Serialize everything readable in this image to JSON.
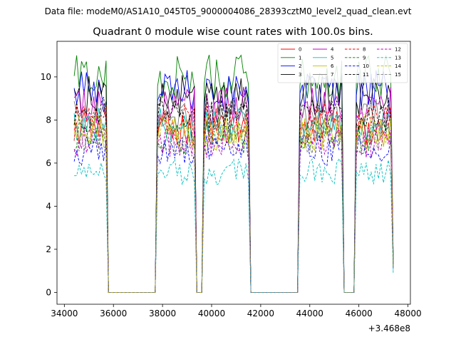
{
  "figure": {
    "suptitle": "Data file: modeM0/AS1A10_045T05_9000004086_28393cztM0_level2_quad_clean.evt"
  },
  "chart_data": {
    "type": "line",
    "title": "Quadrant 0 module wise count rates with 100.0s bins.",
    "xlabel": "",
    "ylabel": "",
    "x_offset_label": "+3.468e8",
    "xlim": [
      33700,
      48100
    ],
    "ylim": [
      -0.55,
      11.65
    ],
    "xticks": [
      34000,
      36000,
      38000,
      40000,
      42000,
      44000,
      46000,
      48000
    ],
    "xtick_labels": [
      "34000",
      "36000",
      "38000",
      "40000",
      "42000",
      "44000",
      "46000",
      "48000"
    ],
    "yticks": [
      0,
      2,
      4,
      6,
      8,
      10
    ],
    "ytick_labels": [
      "0",
      "2",
      "4",
      "6",
      "8",
      "10"
    ],
    "legend_position": "top-right",
    "segments": [
      {
        "start": 34400,
        "end": 35700,
        "drop_to": 35800
      },
      {
        "start": 37800,
        "end": 39300,
        "drop_to": 39400
      },
      {
        "start": 39700,
        "end": 41500,
        "drop_to": 41600
      },
      {
        "start": 43600,
        "end": 45300,
        "drop_to": 45400
      },
      {
        "start": 45900,
        "end": 47300,
        "drop_to": null
      }
    ],
    "series": [
      {
        "name": "0",
        "color": "#ff0000",
        "dashed": false,
        "level": 7.6
      },
      {
        "name": "1",
        "color": "#008000",
        "dashed": false,
        "level": 10.0
      },
      {
        "name": "2",
        "color": "#0000ff",
        "dashed": false,
        "level": 9.3
      },
      {
        "name": "3",
        "color": "#000000",
        "dashed": false,
        "level": 9.1
      },
      {
        "name": "4",
        "color": "#bf00bf",
        "dashed": false,
        "level": 8.6
      },
      {
        "name": "5",
        "color": "#00bfbf",
        "dashed": false,
        "level": 7.8
      },
      {
        "name": "6",
        "color": "#bfbf00",
        "dashed": false,
        "level": 7.4
      },
      {
        "name": "7",
        "color": "#808080",
        "dashed": false,
        "level": 8.1
      },
      {
        "name": "8",
        "color": "#ff0000",
        "dashed": true,
        "level": 7.9
      },
      {
        "name": "9",
        "color": "#008000",
        "dashed": true,
        "level": 7.2
      },
      {
        "name": "10",
        "color": "#0000ff",
        "dashed": true,
        "level": 6.6
      },
      {
        "name": "11",
        "color": "#000000",
        "dashed": true,
        "level": 8.3
      },
      {
        "name": "12",
        "color": "#bf00bf",
        "dashed": true,
        "level": 7.0
      },
      {
        "name": "13",
        "color": "#00bfbf",
        "dashed": true,
        "level": 5.6
      },
      {
        "name": "14",
        "color": "#bfbf00",
        "dashed": true,
        "level": 7.5
      },
      {
        "name": "15",
        "color": "#808080",
        "dashed": true,
        "level": 7.1
      }
    ]
  }
}
